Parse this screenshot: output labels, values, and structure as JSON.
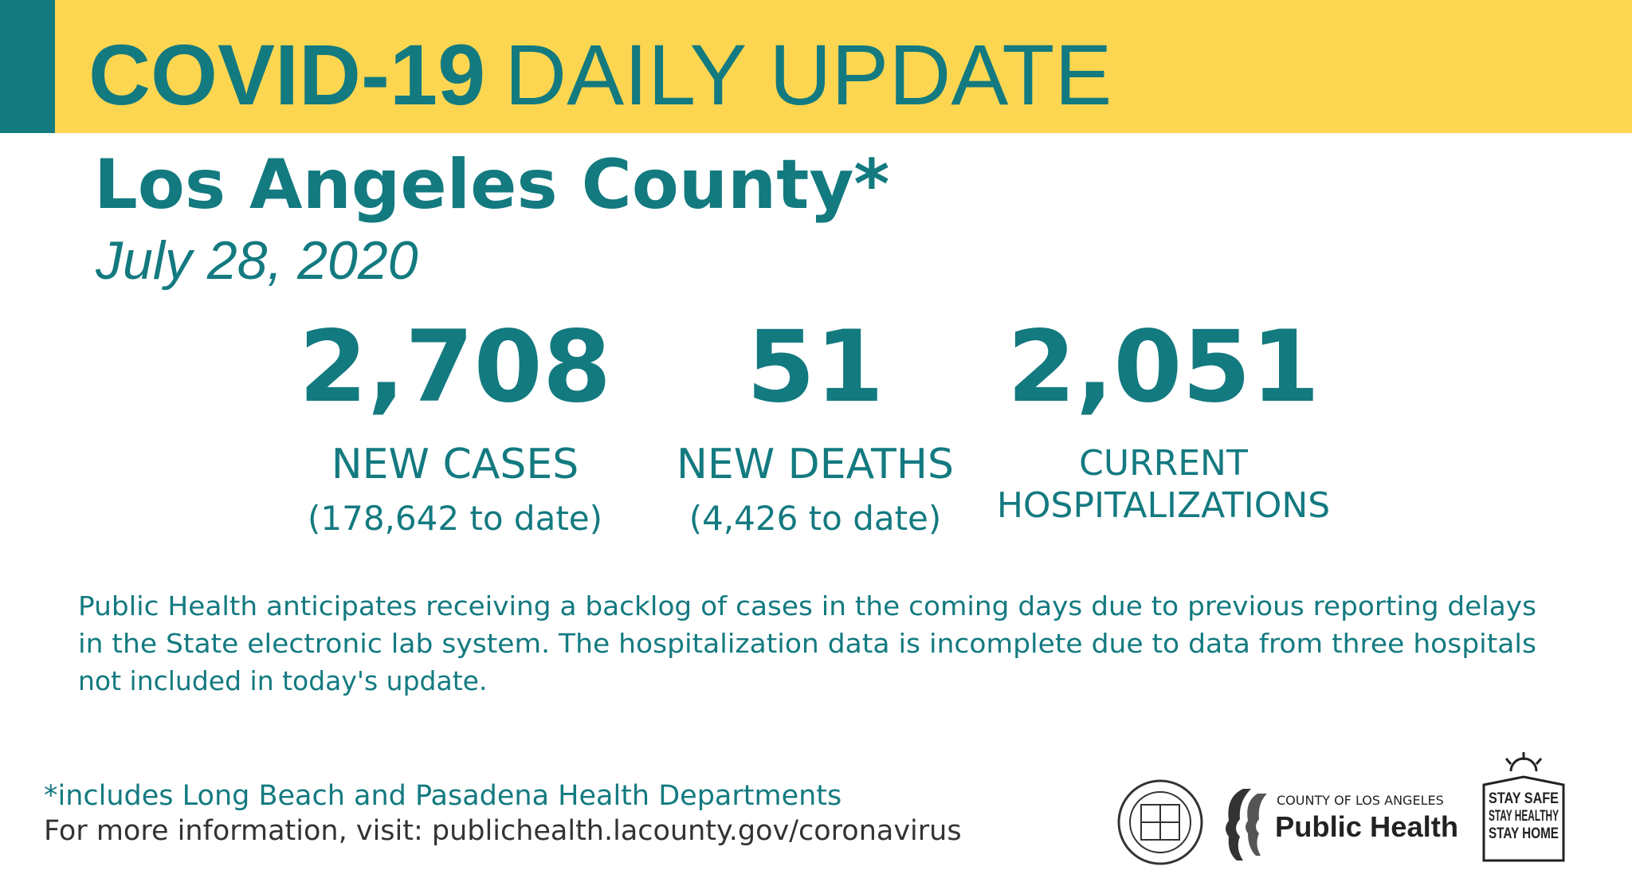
{
  "header": {
    "title_bold": "COVID-19",
    "title_rest": "DAILY UPDATE"
  },
  "subtitle": "Los Angeles County*",
  "date": "July 28, 2020",
  "stats": [
    {
      "value": "2,708",
      "label": "NEW CASES",
      "sublabel": "(178,642 to date)"
    },
    {
      "value": "51",
      "label": "NEW DEATHS",
      "sublabel": "(4,426 to date)"
    },
    {
      "value": "2,051",
      "label_lines": [
        "CURRENT",
        "HOSPITALIZATIONS"
      ]
    }
  ],
  "note": [
    "Public Health anticipates receiving a backlog of cases in the coming days due to previous reporting delays",
    "in the State electronic lab system. The hospitalization data is incomplete due to data from three hospitals",
    "not included in today's update."
  ],
  "footer": {
    "footnote": "*includes Long Beach and Pasadena Health Departments",
    "info": "For more information, visit: publichealth.lacounty.gov/coronavirus"
  },
  "logos": {
    "dept_small": "COUNTY OF LOS ANGELES",
    "dept_big": "Public Health",
    "stay": [
      "STAY SAFE",
      "STAY HEALTHY",
      "STAY HOME"
    ]
  }
}
